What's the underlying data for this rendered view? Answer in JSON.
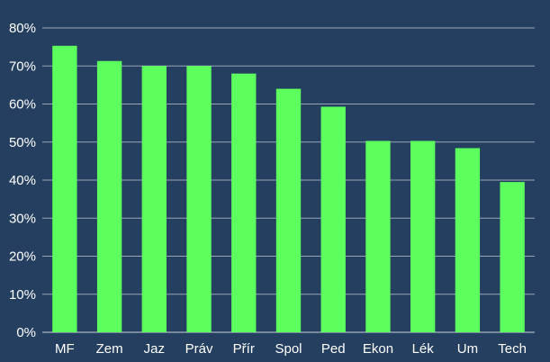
{
  "chart_data": {
    "type": "bar",
    "title": "",
    "xlabel": "",
    "ylabel": "",
    "categories": [
      "MF",
      "Zem",
      "Jaz",
      "Práv",
      "Přír",
      "Spol",
      "Ped",
      "Ekon",
      "Lék",
      "Um",
      "Tech"
    ],
    "values": [
      75.3,
      71.3,
      70.0,
      70.0,
      68.0,
      64.0,
      59.3,
      50.3,
      50.3,
      48.4,
      39.5
    ],
    "value_unit": "%",
    "ylim": [
      0,
      80
    ],
    "y_ticks": [
      "0%",
      "10%",
      "20%",
      "30%",
      "40%",
      "50%",
      "60%",
      "70%",
      "80%"
    ],
    "grid": true,
    "legend": "none",
    "colors": {
      "background": "#243f5f",
      "bar": "#5cff5e",
      "gridline": "#9aa6b6",
      "text": "#ffffff"
    }
  }
}
